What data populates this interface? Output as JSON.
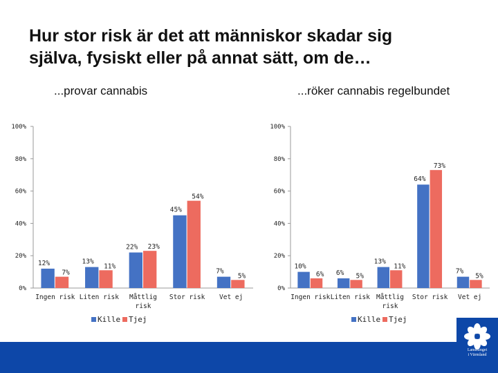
{
  "title": "Hur stor risk är det att människor skadar sig\nsjälva, fysiskt eller på annat sätt, om de…",
  "logo": {
    "name": "flower-logo-icon",
    "text": "Landstinget\ni Värmland"
  },
  "colors": {
    "kille": "#4472c4",
    "tjej": "#ed6b5f",
    "footer": "#0d47a8"
  },
  "chart_data": [
    {
      "type": "bar",
      "subtitle": "...provar cannabis",
      "categories": [
        "Ingen risk",
        "Liten risk",
        "Måttlig risk",
        "Stor risk",
        "Vet ej"
      ],
      "category_lines": [
        [
          "Ingen risk"
        ],
        [
          "Liten risk"
        ],
        [
          "Måttlig",
          "risk"
        ],
        [
          "Stor risk"
        ],
        [
          "Vet ej"
        ]
      ],
      "series": [
        {
          "name": "Kille",
          "values": [
            12,
            13,
            22,
            45,
            7
          ],
          "labels": [
            "12%",
            "13%",
            "22%",
            "45%",
            "7%"
          ]
        },
        {
          "name": "Tjej",
          "values": [
            7,
            11,
            23,
            54,
            5
          ],
          "labels": [
            "7%",
            "11%",
            "23%",
            "54%",
            "5%"
          ]
        }
      ],
      "yticks": [
        "0%",
        "20%",
        "40%",
        "60%",
        "80%",
        "100%"
      ],
      "ylim": [
        0,
        100
      ],
      "grid": false,
      "legend": "bottom"
    },
    {
      "type": "bar",
      "subtitle": "...röker cannabis regelbundet",
      "categories": [
        "Ingen risk",
        "Liten risk",
        "Måttlig risk",
        "Stor risk",
        "Vet ej"
      ],
      "category_lines": [
        [
          "Ingen risk"
        ],
        [
          "Liten risk"
        ],
        [
          "Måttlig",
          "risk"
        ],
        [
          "Stor risk"
        ],
        [
          "Vet ej"
        ]
      ],
      "series": [
        {
          "name": "Kille",
          "values": [
            10,
            6,
            13,
            64,
            7
          ],
          "labels": [
            "10%",
            "6%",
            "13%",
            "64%",
            "7%"
          ]
        },
        {
          "name": "Tjej",
          "values": [
            6,
            5,
            11,
            73,
            5
          ],
          "labels": [
            "6%",
            "5%",
            "11%",
            "73%",
            "5%"
          ]
        }
      ],
      "yticks": [
        "0%",
        "20%",
        "40%",
        "60%",
        "80%",
        "100%"
      ],
      "ylim": [
        0,
        100
      ],
      "grid": false,
      "legend": "bottom"
    }
  ]
}
